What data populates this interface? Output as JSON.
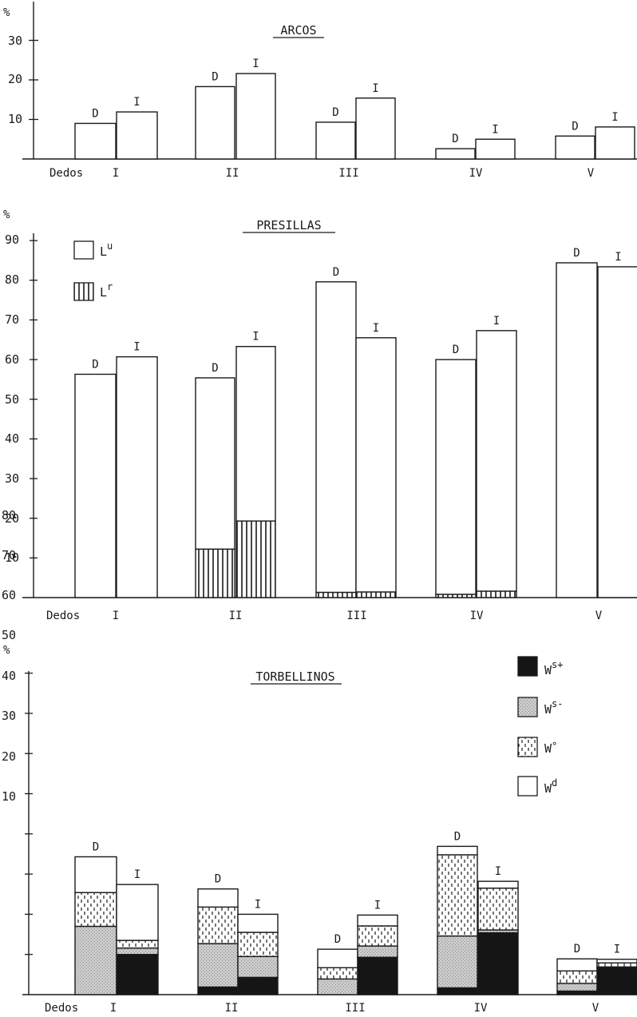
{
  "figure": {
    "categories_label": "Dedos",
    "categories": [
      "I",
      "II",
      "III",
      "IV",
      "V"
    ],
    "bar_labels": [
      "D",
      "I"
    ],
    "percent_symbol": "%",
    "colors": {
      "ink": "#1a1a1a",
      "paper": "#ffffff",
      "stipple": "#c4c4c4",
      "solid": "#151515"
    }
  },
  "chart_data": [
    {
      "type": "bar",
      "title": "ARCOS",
      "ylabel": "%",
      "xlabel": "Dedos",
      "categories": [
        "I",
        "II",
        "III",
        "IV",
        "V"
      ],
      "yticks": [
        "10",
        "20",
        "30"
      ],
      "ylim": [
        0,
        38
      ],
      "series": [
        {
          "name": "D",
          "values": [
            9,
            18.3,
            9.3,
            2.6,
            5.8
          ]
        },
        {
          "name": "I",
          "values": [
            11.9,
            21.6,
            15.4,
            5,
            8.1
          ]
        }
      ]
    },
    {
      "type": "bar",
      "title": "PRESILLAS",
      "ylabel": "%",
      "xlabel": "Dedos",
      "categories": [
        "I",
        "II",
        "III",
        "IV",
        "V"
      ],
      "yticks": [
        "10",
        "20",
        "30",
        "40",
        "50",
        "60",
        "70",
        "80",
        "90"
      ],
      "ylim": [
        0,
        96
      ],
      "legend": [
        {
          "key": "Lu",
          "base": "L",
          "sup": "u",
          "pattern": "blank"
        },
        {
          "key": "Lr",
          "base": "L",
          "sup": "r",
          "pattern": "vlines"
        }
      ],
      "legend_position": "top-left",
      "stacked": true,
      "series": [
        {
          "name": "D",
          "total": [
            56.3,
            55.4,
            79.6,
            60,
            84.4
          ],
          "Lr": [
            0,
            12.2,
            1.3,
            0.8,
            0
          ]
        },
        {
          "name": "I",
          "total": [
            60.7,
            63.3,
            65.5,
            67.3,
            83.4
          ],
          "Lr": [
            0,
            19.3,
            1.4,
            1.6,
            0
          ]
        }
      ]
    },
    {
      "type": "bar",
      "title": "TORBELLINOS",
      "ylabel": "%",
      "xlabel": "Dedos",
      "categories": [
        "I",
        "II",
        "III",
        "IV",
        "V"
      ],
      "yticks": [
        "10",
        "20",
        "30",
        "40",
        "50",
        "60",
        "70",
        "80"
      ],
      "ylim": [
        0,
        86
      ],
      "legend": [
        {
          "key": "Ws+",
          "base": "W",
          "sup": "s+",
          "pattern": "solid"
        },
        {
          "key": "Ws-",
          "base": "W",
          "sup": "s-",
          "pattern": "stipple"
        },
        {
          "key": "Wo",
          "base": "W",
          "sup": "°",
          "pattern": "dashes"
        },
        {
          "key": "Wd",
          "base": "W",
          "sup": "d",
          "pattern": "blank"
        }
      ],
      "legend_position": "top-right",
      "stacked": true,
      "series": [
        {
          "name": "D",
          "Ws+": [
            0,
            1.9,
            0,
            1.7,
            0.9
          ],
          "Ws-": [
            17,
            10.8,
            3.9,
            12.9,
            1.9
          ],
          "Wo": [
            8.4,
            9.1,
            2.8,
            20.2,
            3.1
          ],
          "Wd": [
            8.9,
            4.5,
            4.6,
            2.1,
            3
          ]
        },
        {
          "name": "I",
          "Ws+": [
            10,
            4.3,
            9.3,
            15.4,
            6.7
          ],
          "Ws-": [
            1.6,
            5.2,
            2.8,
            0.7,
            0.2
          ],
          "Wo": [
            1.9,
            6,
            5,
            10.4,
            1
          ],
          "Wd": [
            13.9,
            4.5,
            2.7,
            1.7,
            0.9
          ]
        }
      ]
    }
  ]
}
